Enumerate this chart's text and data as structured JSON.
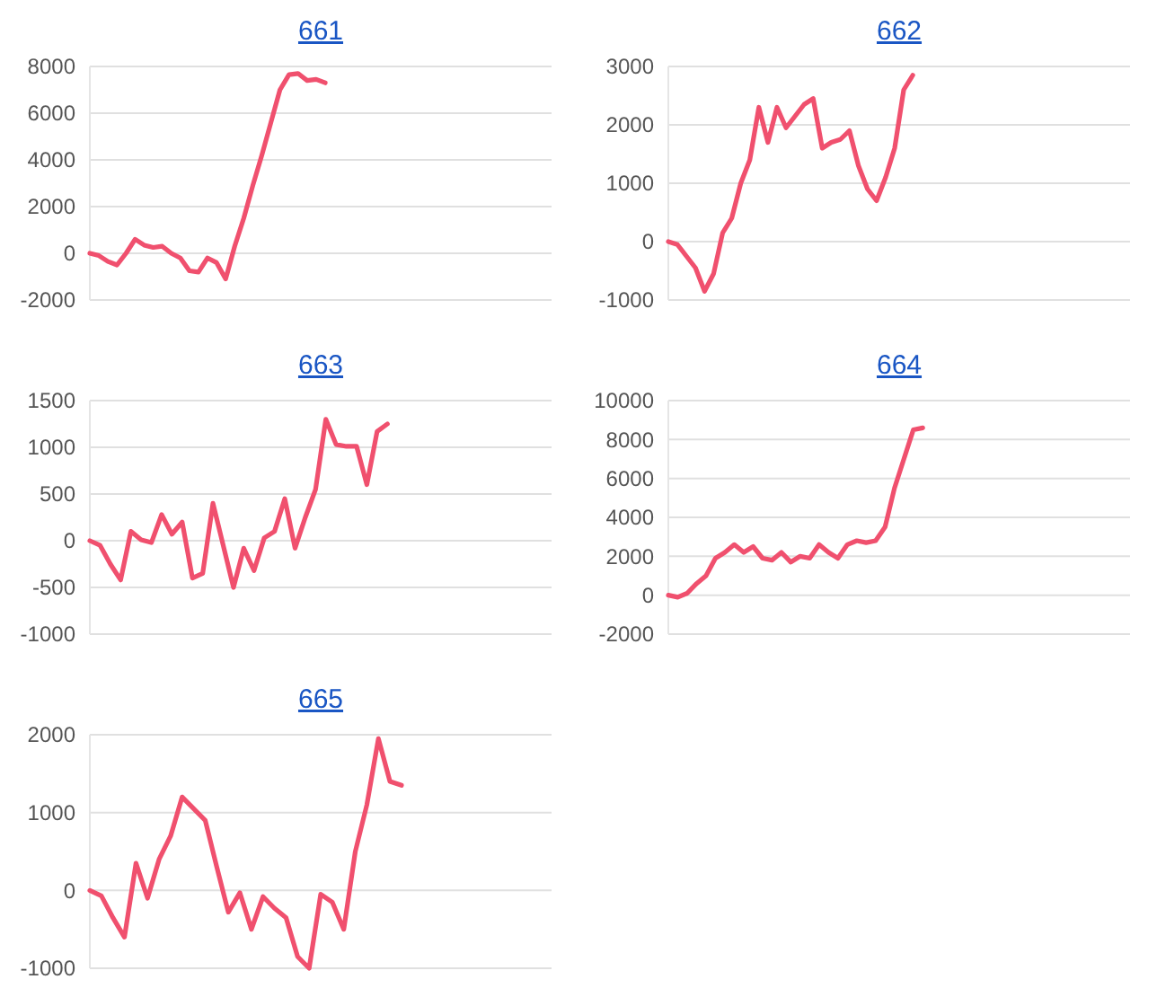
{
  "chart_data": [
    {
      "type": "line",
      "title": "661",
      "categories": [
        null,
        null,
        null,
        null,
        null,
        null,
        null,
        null,
        null,
        null,
        null,
        null,
        null,
        null,
        null,
        null,
        null,
        null,
        null,
        null,
        null,
        null,
        null,
        null,
        null,
        null,
        null,
        null,
        null,
        null,
        null,
        null,
        null,
        null,
        null,
        null,
        null,
        null,
        null,
        null,
        null,
        null,
        null,
        null,
        null,
        null,
        null,
        null,
        null,
        null,
        null,
        null
      ],
      "series": [
        {
          "color": "#f0506e",
          "values": [
            0,
            -100,
            -350,
            -500,
            0,
            600,
            350,
            250,
            300,
            0,
            -200,
            -750,
            -800,
            -200,
            -400,
            -1100,
            300,
            1500,
            2900,
            4200,
            5600,
            7000,
            7650,
            7700,
            7400,
            7450,
            7300,
            null,
            null,
            null,
            null,
            null,
            null,
            null,
            null,
            null,
            null,
            null,
            null,
            null,
            null,
            null,
            null,
            null,
            null,
            null,
            null,
            null,
            null,
            null,
            null,
            null
          ]
        }
      ],
      "ylim": [
        -2000,
        8000
      ],
      "yticks": [
        -2000,
        0,
        2000,
        4000,
        6000,
        8000
      ],
      "grid": "y",
      "tick_labels": "y"
    },
    {
      "type": "line",
      "title": "662",
      "categories": [
        null,
        null,
        null,
        null,
        null,
        null,
        null,
        null,
        null,
        null,
        null,
        null,
        null,
        null,
        null,
        null,
        null,
        null,
        null,
        null,
        null,
        null,
        null,
        null,
        null,
        null,
        null,
        null,
        null,
        null,
        null,
        null,
        null,
        null,
        null,
        null,
        null,
        null,
        null,
        null,
        null,
        null,
        null,
        null,
        null,
        null,
        null,
        null,
        null,
        null,
        null,
        null
      ],
      "series": [
        {
          "color": "#f0506e",
          "values": [
            0,
            -50,
            -250,
            -450,
            -850,
            -550,
            150,
            400,
            1000,
            1400,
            2300,
            1700,
            2300,
            1950,
            2150,
            2350,
            2450,
            1600,
            1700,
            1750,
            1900,
            1300,
            900,
            700,
            1100,
            1600,
            2600,
            2850,
            null,
            null,
            null,
            null,
            null,
            null,
            null,
            null,
            null,
            null,
            null,
            null,
            null,
            null,
            null,
            null,
            null,
            null,
            null,
            null,
            null,
            null,
            null,
            null
          ]
        }
      ],
      "ylim": [
        -1000,
        3000
      ],
      "yticks": [
        -1000,
        0,
        1000,
        2000,
        3000
      ],
      "grid": "y",
      "tick_labels": "y"
    },
    {
      "type": "line",
      "title": "663",
      "categories": [
        null,
        null,
        null,
        null,
        null,
        null,
        null,
        null,
        null,
        null,
        null,
        null,
        null,
        null,
        null,
        null,
        null,
        null,
        null,
        null,
        null,
        null,
        null,
        null,
        null,
        null,
        null,
        null,
        null,
        null,
        null,
        null,
        null,
        null,
        null,
        null,
        null,
        null,
        null,
        null,
        null,
        null,
        null,
        null,
        null,
        null
      ],
      "series": [
        {
          "color": "#f0506e",
          "values": [
            0,
            -50,
            -250,
            -420,
            100,
            10,
            -20,
            280,
            70,
            200,
            -400,
            -350,
            400,
            -50,
            -500,
            -80,
            -320,
            30,
            100,
            450,
            -80,
            250,
            550,
            1300,
            1030,
            1010,
            1010,
            600,
            1170,
            1250,
            null,
            null,
            null,
            null,
            null,
            null,
            null,
            null,
            null,
            null,
            null,
            null,
            null,
            null,
            null,
            null
          ]
        }
      ],
      "ylim": [
        -1000,
        1500
      ],
      "yticks": [
        -1000,
        -500,
        0,
        500,
        1000,
        1500
      ],
      "grid": "y",
      "tick_labels": "y"
    },
    {
      "type": "line",
      "title": "664",
      "categories": [
        null,
        null,
        null,
        null,
        null,
        null,
        null,
        null,
        null,
        null,
        null,
        null,
        null,
        null,
        null,
        null,
        null,
        null,
        null,
        null,
        null,
        null,
        null,
        null,
        null,
        null,
        null,
        null,
        null,
        null,
        null,
        null,
        null,
        null,
        null,
        null,
        null,
        null,
        null,
        null,
        null,
        null,
        null,
        null,
        null,
        null,
        null,
        null,
        null,
        null
      ],
      "series": [
        {
          "color": "#f0506e",
          "values": [
            0,
            -100,
            100,
            600,
            1000,
            1900,
            2200,
            2600,
            2200,
            2500,
            1900,
            1800,
            2200,
            1700,
            2000,
            1900,
            2600,
            2200,
            1900,
            2600,
            2800,
            2700,
            2800,
            3500,
            5500,
            7000,
            8500,
            8600,
            null,
            null,
            null,
            null,
            null,
            null,
            null,
            null,
            null,
            null,
            null,
            null,
            null,
            null,
            null,
            null,
            null,
            null,
            null,
            null,
            null,
            null
          ]
        }
      ],
      "ylim": [
        -2000,
        10000
      ],
      "yticks": [
        -2000,
        0,
        2000,
        4000,
        6000,
        8000,
        10000
      ],
      "grid": "y",
      "tick_labels": "y"
    },
    {
      "type": "line",
      "title": "665",
      "categories": [
        null,
        null,
        null,
        null,
        null,
        null,
        null,
        null,
        null,
        null,
        null,
        null,
        null,
        null,
        null,
        null,
        null,
        null,
        null,
        null,
        null,
        null,
        null,
        null,
        null,
        null,
        null,
        null,
        null,
        null,
        null,
        null,
        null,
        null,
        null,
        null,
        null,
        null,
        null,
        null,
        null
      ],
      "series": [
        {
          "color": "#f0506e",
          "values": [
            0,
            -70,
            -350,
            -600,
            350,
            -100,
            400,
            700,
            1200,
            1050,
            900,
            300,
            -280,
            -30,
            -500,
            -80,
            -230,
            -350,
            -850,
            -1000,
            -50,
            -150,
            -500,
            500,
            1100,
            1950,
            1400,
            1350,
            null,
            null,
            null,
            null,
            null,
            null,
            null,
            null,
            null,
            null,
            null,
            null,
            null
          ]
        }
      ],
      "ylim": [
        -1000,
        2000
      ],
      "yticks": [
        -1000,
        0,
        1000,
        2000
      ],
      "grid": "y",
      "tick_labels": "y"
    }
  ]
}
